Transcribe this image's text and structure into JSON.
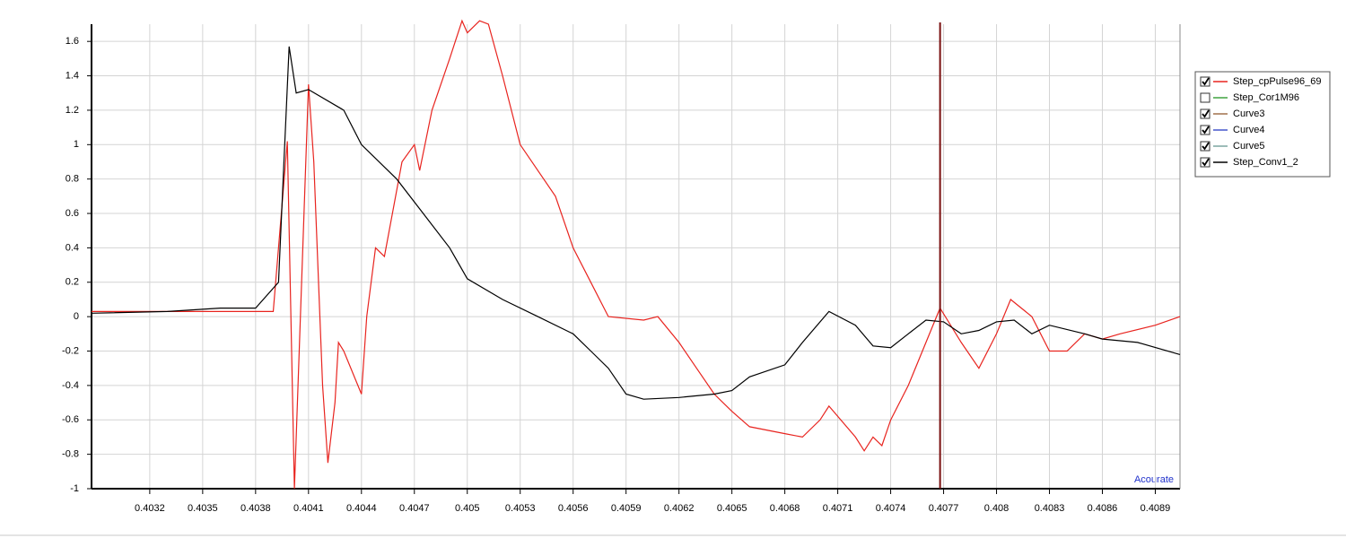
{
  "chart_data": {
    "type": "line",
    "xlim": [
      0.40287,
      0.40904
    ],
    "ylim": [
      -1,
      1.7
    ],
    "xticks": [
      0.4032,
      0.4035,
      0.4038,
      0.4041,
      0.4044,
      0.4047,
      0.405,
      0.4053,
      0.4056,
      0.4059,
      0.4062,
      0.4065,
      0.4068,
      0.4071,
      0.4074,
      0.4077,
      0.408,
      0.4083,
      0.4086,
      0.4089
    ],
    "yticks": [
      1.6,
      1.4,
      1.2,
      1,
      0.8,
      0.6,
      0.4,
      0.2,
      0,
      -0.2,
      -0.4,
      -0.6,
      -0.8,
      -1
    ],
    "grid": true,
    "legend": "right",
    "cursor_x": 0.40768,
    "watermark": "Acourate",
    "series": [
      {
        "name": "Step_cpPulse96_69",
        "color": "#e8241f",
        "checked": true,
        "x": [
          0.40287,
          0.4032,
          0.4035,
          0.4038,
          0.4039,
          0.40398,
          0.40402,
          0.4041,
          0.40413,
          0.40418,
          0.40421,
          0.40425,
          0.40427,
          0.4043,
          0.4044,
          0.40443,
          0.40448,
          0.40453,
          0.40463,
          0.4047,
          0.40473,
          0.4048,
          0.4049,
          0.40497,
          0.405,
          0.40507,
          0.40512,
          0.4052,
          0.4053,
          0.4055,
          0.4056,
          0.4057,
          0.4058,
          0.406,
          0.40608,
          0.4062,
          0.4063,
          0.4064,
          0.4065,
          0.4066,
          0.4068,
          0.4069,
          0.407,
          0.40705,
          0.4072,
          0.40725,
          0.4073,
          0.40735,
          0.4074,
          0.4075,
          0.4076,
          0.40768,
          0.4078,
          0.4079,
          0.408,
          0.40808,
          0.4082,
          0.4083,
          0.4084,
          0.4085,
          0.4086,
          0.4087,
          0.4089,
          0.40904
        ],
        "values": [
          0.03,
          0.03,
          0.03,
          0.03,
          0.03,
          1.02,
          -1,
          1.35,
          0.9,
          -0.4,
          -0.85,
          -0.5,
          -0.15,
          -0.2,
          -0.45,
          0,
          0.4,
          0.35,
          0.9,
          1,
          0.85,
          1.2,
          1.5,
          1.72,
          1.65,
          1.72,
          1.7,
          1.4,
          1,
          0.7,
          0.4,
          0.2,
          0,
          -0.02,
          0,
          -0.15,
          -0.3,
          -0.45,
          -0.55,
          -0.64,
          -0.68,
          -0.7,
          -0.6,
          -0.52,
          -0.7,
          -0.78,
          -0.7,
          -0.75,
          -0.6,
          -0.4,
          -0.15,
          0.05,
          -0.15,
          -0.3,
          -0.1,
          0.1,
          0,
          -0.2,
          -0.2,
          -0.1,
          -0.13,
          -0.1,
          -0.05,
          0
        ]
      },
      {
        "name": "Step_Cor1M96",
        "color": "#3fa33f",
        "checked": false,
        "x": [],
        "values": []
      },
      {
        "name": "Curve3",
        "color": "#a0704a",
        "checked": true,
        "x": [],
        "values": []
      },
      {
        "name": "Curve4",
        "color": "#4455cc",
        "checked": true,
        "x": [],
        "values": []
      },
      {
        "name": "Curve5",
        "color": "#7aa5a0",
        "checked": true,
        "x": [],
        "values": []
      },
      {
        "name": "Step_Conv1_2",
        "color": "#000000",
        "checked": true,
        "x": [
          0.40287,
          0.4033,
          0.4036,
          0.4038,
          0.40393,
          0.40399,
          0.40403,
          0.4041,
          0.4043,
          0.4044,
          0.4046,
          0.40475,
          0.4049,
          0.405,
          0.4052,
          0.4054,
          0.4056,
          0.4057,
          0.4058,
          0.4059,
          0.406,
          0.4062,
          0.4064,
          0.4065,
          0.4066,
          0.4068,
          0.4069,
          0.40705,
          0.4072,
          0.4073,
          0.4074,
          0.4075,
          0.4076,
          0.4077,
          0.4078,
          0.4079,
          0.408,
          0.4081,
          0.4082,
          0.4083,
          0.4085,
          0.4086,
          0.4088,
          0.40904
        ],
        "values": [
          0.02,
          0.03,
          0.05,
          0.05,
          0.2,
          1.57,
          1.3,
          1.32,
          1.2,
          1,
          0.8,
          0.6,
          0.4,
          0.22,
          0.1,
          0,
          -0.1,
          -0.2,
          -0.3,
          -0.45,
          -0.48,
          -0.47,
          -0.45,
          -0.43,
          -0.35,
          -0.28,
          -0.15,
          0.03,
          -0.05,
          -0.17,
          -0.18,
          -0.1,
          -0.02,
          -0.03,
          -0.1,
          -0.08,
          -0.03,
          -0.02,
          -0.1,
          -0.05,
          -0.1,
          -0.13,
          -0.15,
          -0.22
        ]
      }
    ]
  }
}
